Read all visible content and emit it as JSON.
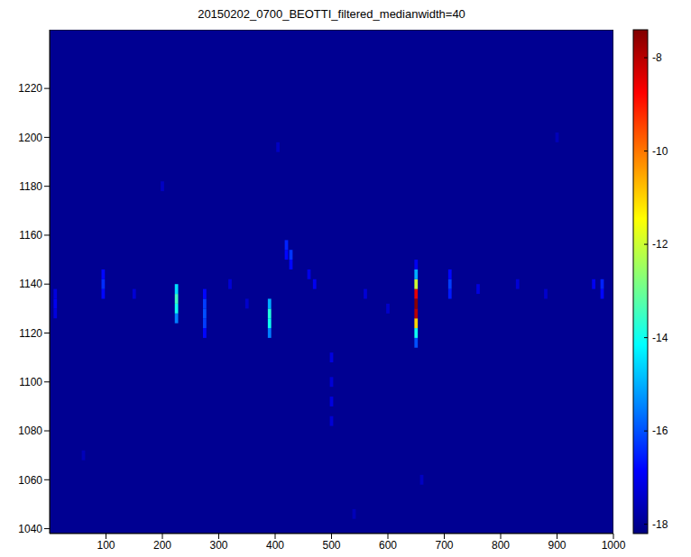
{
  "chart_data": {
    "type": "heatmap",
    "title": "20150202_0700_BEOTTI_filtered_medianwidth=40",
    "xlim": [
      0,
      1000
    ],
    "xticks": [
      100,
      200,
      300,
      400,
      500,
      600,
      700,
      800,
      900,
      1000
    ],
    "ylim": [
      1038,
      1244
    ],
    "yticks": [
      1040,
      1060,
      1080,
      1100,
      1120,
      1140,
      1160,
      1180,
      1200,
      1220
    ],
    "background": -18,
    "cell_width": 6,
    "cell_height": 4,
    "cells": [
      [
        650,
        1116,
        -16
      ],
      [
        650,
        1120,
        -14
      ],
      [
        650,
        1124,
        -11
      ],
      [
        650,
        1128,
        -8
      ],
      [
        650,
        1132,
        -7.5
      ],
      [
        650,
        1136,
        -8.5
      ],
      [
        650,
        1140,
        -12
      ],
      [
        650,
        1144,
        -15
      ],
      [
        650,
        1148,
        -17
      ],
      [
        225,
        1126,
        -15.5
      ],
      [
        225,
        1130,
        -14
      ],
      [
        225,
        1134,
        -13.5
      ],
      [
        225,
        1138,
        -14.5
      ],
      [
        275,
        1120,
        -16.8
      ],
      [
        275,
        1124,
        -16.2
      ],
      [
        275,
        1128,
        -16
      ],
      [
        275,
        1132,
        -16.2
      ],
      [
        275,
        1136,
        -16.8
      ],
      [
        390,
        1120,
        -15.5
      ],
      [
        390,
        1124,
        -14
      ],
      [
        390,
        1128,
        -13.8
      ],
      [
        390,
        1132,
        -15
      ],
      [
        420,
        1152,
        -16.8
      ],
      [
        420,
        1156,
        -16.5
      ],
      [
        428,
        1148,
        -16.8
      ],
      [
        428,
        1152,
        -16.3
      ],
      [
        95,
        1136,
        -16.8
      ],
      [
        95,
        1140,
        -16.4
      ],
      [
        95,
        1144,
        -16.8
      ],
      [
        10,
        1128,
        -17.2
      ],
      [
        10,
        1132,
        -17
      ],
      [
        10,
        1136,
        -17.2
      ],
      [
        710,
        1136,
        -16.6
      ],
      [
        710,
        1140,
        -16.2
      ],
      [
        710,
        1144,
        -16.8
      ],
      [
        980,
        1136,
        -16.8
      ],
      [
        980,
        1140,
        -16.5
      ],
      [
        965,
        1140,
        -17
      ],
      [
        500,
        1084,
        -17.3
      ],
      [
        500,
        1092,
        -17.2
      ],
      [
        500,
        1100,
        -17.3
      ],
      [
        500,
        1110,
        -17.2
      ],
      [
        470,
        1140,
        -17
      ],
      [
        460,
        1144,
        -17.1
      ],
      [
        560,
        1136,
        -17.3
      ],
      [
        600,
        1130,
        -17.4
      ],
      [
        150,
        1136,
        -17.3
      ],
      [
        320,
        1140,
        -17.3
      ],
      [
        350,
        1132,
        -17.4
      ],
      [
        760,
        1138,
        -17.2
      ],
      [
        830,
        1140,
        -17.3
      ],
      [
        880,
        1136,
        -17.4
      ],
      [
        200,
        1180,
        -17.5
      ],
      [
        405,
        1196,
        -17.5
      ],
      [
        660,
        1060,
        -17.5
      ],
      [
        60,
        1070,
        -17.6
      ],
      [
        900,
        1200,
        -17.6
      ],
      [
        540,
        1046,
        -17.6
      ]
    ],
    "colorbar": {
      "lim": [
        -18.2,
        -7.4
      ],
      "ticks": [
        -18,
        -16,
        -14,
        -12,
        -10,
        -8
      ]
    }
  }
}
